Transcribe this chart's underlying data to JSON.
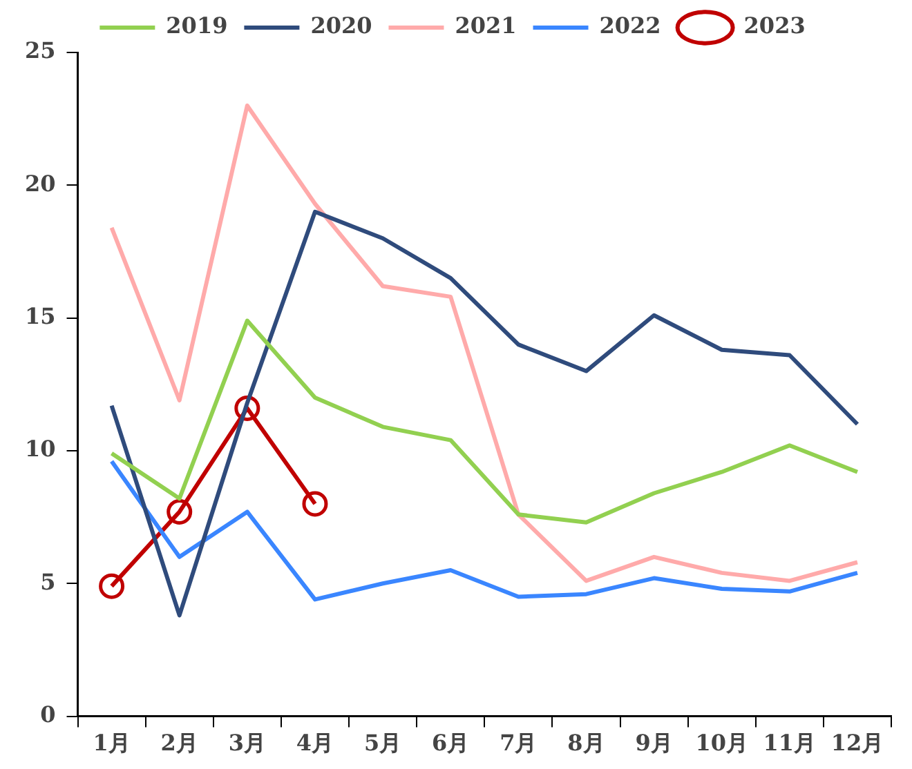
{
  "chart_data": {
    "type": "line",
    "categories": [
      "1月",
      "2月",
      "3月",
      "4月",
      "5月",
      "6月",
      "7月",
      "8月",
      "9月",
      "10月",
      "11月",
      "12月"
    ],
    "ylim": [
      0,
      25
    ],
    "yticks": [
      0,
      5,
      10,
      15,
      20,
      25
    ],
    "grid": false,
    "legend": "top",
    "line_style": "solid",
    "series": [
      {
        "name": "2019",
        "color": "#92d050",
        "marker": "none",
        "values": [
          9.9,
          8.2,
          14.9,
          12.0,
          10.9,
          10.4,
          7.6,
          7.3,
          8.4,
          9.2,
          10.2,
          9.2
        ]
      },
      {
        "name": "2020",
        "color": "#2f4b7c",
        "marker": "none",
        "values": [
          11.7,
          3.8,
          11.8,
          19.0,
          18.0,
          16.5,
          14.0,
          13.0,
          15.1,
          13.8,
          13.6,
          11.0
        ]
      },
      {
        "name": "2021",
        "color": "#ffaaaa",
        "marker": "none",
        "values": [
          18.4,
          11.9,
          23.0,
          19.3,
          16.2,
          15.8,
          7.6,
          5.1,
          6.0,
          5.4,
          5.1,
          5.8
        ]
      },
      {
        "name": "2022",
        "color": "#3a86ff",
        "marker": "none",
        "values": [
          9.6,
          6.0,
          7.7,
          4.4,
          5.0,
          5.5,
          4.5,
          4.6,
          5.2,
          4.8,
          4.7,
          5.4
        ]
      },
      {
        "name": "2023",
        "color": "#c00000",
        "marker": "circle",
        "values": [
          4.9,
          7.7,
          11.6,
          8.0,
          null,
          null,
          null,
          null,
          null,
          null,
          null,
          null
        ]
      }
    ]
  }
}
